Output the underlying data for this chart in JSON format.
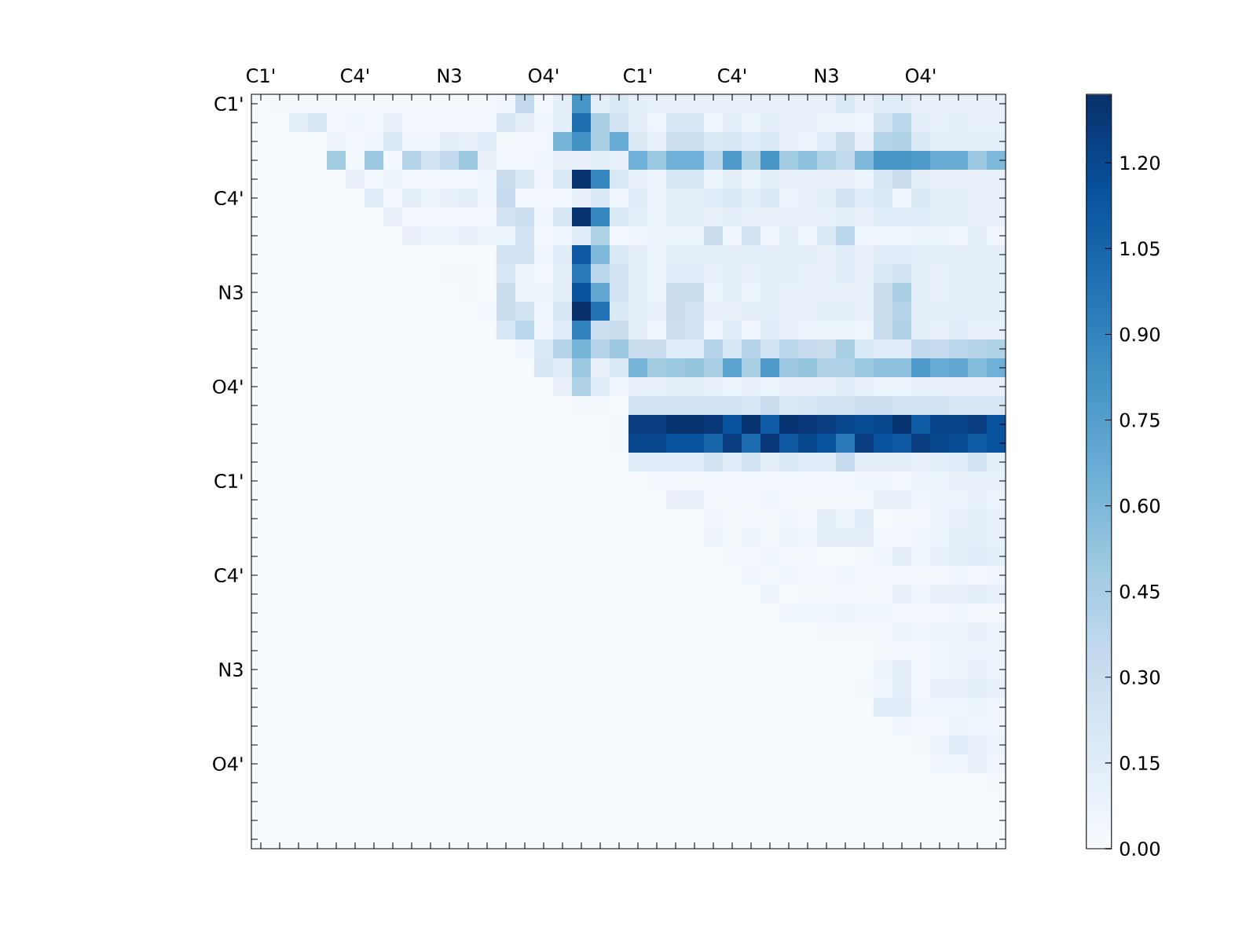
{
  "chart_data": {
    "type": "heatmap",
    "categories": [
      "C1'",
      null,
      null,
      null,
      null,
      "C4'",
      null,
      null,
      null,
      null,
      "N3",
      null,
      null,
      null,
      null,
      "O4'",
      null,
      null,
      null,
      null,
      "C1'",
      null,
      null,
      null,
      null,
      "C4'",
      null,
      null,
      null,
      null,
      "N3",
      null,
      null,
      null,
      null,
      "O4'",
      null,
      null,
      null,
      null
    ],
    "y_categories": [
      "C1'",
      null,
      null,
      null,
      null,
      "C4'",
      null,
      null,
      null,
      null,
      "N3",
      null,
      null,
      null,
      null,
      "O4'",
      null,
      null,
      null,
      null,
      "C1'",
      null,
      null,
      null,
      null,
      "C4'",
      null,
      null,
      null,
      null,
      "N3",
      null,
      null,
      null,
      null,
      "O4'",
      null,
      null,
      null,
      null
    ],
    "cells": [
      [
        0.01,
        0.02,
        0.02,
        0.02,
        0.02,
        0.02,
        0.02,
        0.02,
        0.02,
        0.02,
        0.02,
        0.02,
        0.02,
        0.05,
        0.35,
        0.03,
        0.12,
        0.8,
        0.12,
        0.2,
        0.12,
        0.1,
        0.1,
        0.1,
        0.1,
        0.1,
        0.1,
        0.1,
        0.1,
        0.1,
        0.1,
        0.2,
        0.1,
        0.15,
        0.15,
        0.1,
        0.1,
        0.1,
        0.1,
        0.1
      ],
      [
        0,
        0,
        0.12,
        0.22,
        0.03,
        0.06,
        0.03,
        0.1,
        0.04,
        0.04,
        0.04,
        0.04,
        0.04,
        0.22,
        0.12,
        0.06,
        0.12,
        1.0,
        0.45,
        0.25,
        0.12,
        0.06,
        0.22,
        0.22,
        0.06,
        0.12,
        0.08,
        0.12,
        0.1,
        0.1,
        0.08,
        0.08,
        0.06,
        0.25,
        0.38,
        0.12,
        0.1,
        0.12,
        0.1,
        0.1
      ],
      [
        0,
        0,
        0,
        0,
        0.08,
        0.04,
        0.05,
        0.2,
        0.06,
        0.05,
        0.12,
        0.1,
        0.15,
        0.02,
        0.04,
        0.04,
        0.62,
        0.82,
        0.45,
        0.68,
        0.18,
        0.1,
        0.28,
        0.28,
        0.2,
        0.22,
        0.15,
        0.18,
        0.1,
        0.08,
        0.15,
        0.3,
        0.1,
        0.4,
        0.42,
        0.18,
        0.12,
        0.12,
        0.12,
        0.12
      ],
      [
        0,
        0,
        0,
        0,
        0.48,
        0.02,
        0.5,
        0.03,
        0.4,
        0.25,
        0.35,
        0.5,
        0.1,
        0.03,
        0.03,
        0.05,
        0.1,
        0.1,
        0.12,
        0.1,
        0.65,
        0.5,
        0.65,
        0.65,
        0.38,
        0.78,
        0.42,
        0.8,
        0.48,
        0.55,
        0.42,
        0.35,
        0.6,
        0.8,
        0.8,
        0.78,
        0.68,
        0.68,
        0.5,
        0.6
      ],
      [
        0,
        0,
        0,
        0,
        0,
        0.1,
        0.03,
        0.08,
        0.03,
        0.03,
        0.03,
        0.03,
        0.05,
        0.3,
        0.18,
        0.05,
        0.18,
        1.3,
        0.88,
        0.2,
        0.1,
        0.08,
        0.22,
        0.22,
        0.08,
        0.12,
        0.08,
        0.12,
        0.1,
        0.1,
        0.1,
        0.1,
        0.08,
        0.22,
        0.3,
        0.12,
        0.1,
        0.1,
        0.1,
        0.1
      ],
      [
        0,
        0,
        0,
        0,
        0,
        0,
        0.15,
        0.03,
        0.12,
        0.08,
        0.1,
        0.12,
        0.05,
        0.32,
        0.04,
        0.03,
        0.04,
        0.1,
        0.2,
        0.05,
        0.15,
        0.08,
        0.12,
        0.12,
        0.15,
        0.18,
        0.12,
        0.18,
        0.08,
        0.1,
        0.12,
        0.25,
        0.15,
        0.18,
        0.06,
        0.18,
        0.12,
        0.12,
        0.1,
        0.1
      ],
      [
        0,
        0,
        0,
        0,
        0,
        0,
        0,
        0.1,
        0.03,
        0.03,
        0.03,
        0.03,
        0.03,
        0.25,
        0.28,
        0.05,
        0.22,
        1.3,
        0.88,
        0.18,
        0.12,
        0.07,
        0.12,
        0.12,
        0.1,
        0.12,
        0.1,
        0.1,
        0.1,
        0.1,
        0.1,
        0.12,
        0.1,
        0.15,
        0.15,
        0.15,
        0.12,
        0.12,
        0.1,
        0.1
      ],
      [
        0,
        0,
        0,
        0,
        0,
        0,
        0,
        0,
        0.1,
        0.08,
        0.08,
        0.1,
        0.08,
        0.08,
        0.25,
        0.03,
        0.05,
        0.15,
        0.42,
        0.03,
        0.06,
        0.08,
        0.07,
        0.07,
        0.3,
        0.05,
        0.25,
        0.05,
        0.12,
        0.05,
        0.18,
        0.38,
        0.05,
        0.06,
        0.05,
        0.07,
        0.07,
        0.05,
        0.12,
        0.05
      ],
      [
        0,
        0,
        0,
        0,
        0,
        0,
        0,
        0,
        0,
        0,
        0,
        0,
        0,
        0.25,
        0.25,
        0.06,
        0.15,
        1.12,
        0.6,
        0.2,
        0.12,
        0.08,
        0.12,
        0.12,
        0.12,
        0.12,
        0.12,
        0.12,
        0.12,
        0.12,
        0.1,
        0.15,
        0.1,
        0.15,
        0.15,
        0.12,
        0.12,
        0.12,
        0.12,
        0.12
      ],
      [
        0,
        0,
        0,
        0,
        0,
        0,
        0,
        0,
        0,
        0,
        0.02,
        0.02,
        0,
        0.22,
        0.08,
        0.04,
        0.12,
        0.95,
        0.38,
        0.25,
        0.12,
        0.08,
        0.15,
        0.15,
        0.1,
        0.12,
        0.1,
        0.12,
        0.12,
        0.1,
        0.1,
        0.15,
        0.1,
        0.2,
        0.25,
        0.12,
        0.1,
        0.12,
        0.12,
        0.12
      ],
      [
        0,
        0,
        0,
        0,
        0,
        0,
        0,
        0,
        0,
        0,
        0,
        0.02,
        0,
        0.3,
        0.08,
        0.08,
        0.12,
        1.15,
        0.7,
        0.25,
        0.12,
        0.08,
        0.3,
        0.3,
        0.08,
        0.12,
        0.08,
        0.12,
        0.1,
        0.1,
        0.1,
        0.1,
        0.1,
        0.3,
        0.45,
        0.12,
        0.1,
        0.12,
        0.12,
        0.12
      ],
      [
        0,
        0,
        0,
        0,
        0,
        0,
        0,
        0,
        0,
        0,
        0,
        0,
        0.03,
        0.3,
        0.25,
        0.05,
        0.22,
        1.32,
        0.98,
        0.18,
        0.12,
        0.1,
        0.3,
        0.25,
        0.1,
        0.1,
        0.12,
        0.12,
        0.1,
        0.1,
        0.12,
        0.12,
        0.1,
        0.3,
        0.4,
        0.12,
        0.12,
        0.12,
        0.12,
        0.12
      ],
      [
        0,
        0,
        0,
        0,
        0,
        0,
        0,
        0,
        0,
        0,
        0,
        0,
        0,
        0.22,
        0.38,
        0.05,
        0.15,
        0.9,
        0.28,
        0.3,
        0.12,
        0.06,
        0.28,
        0.25,
        0.06,
        0.15,
        0.06,
        0.15,
        0.1,
        0.08,
        0.08,
        0.08,
        0.06,
        0.3,
        0.42,
        0.12,
        0.1,
        0.15,
        0.1,
        0.1
      ],
      [
        0,
        0,
        0,
        0,
        0,
        0,
        0,
        0,
        0,
        0,
        0,
        0,
        0,
        0,
        0.06,
        0.2,
        0.4,
        0.62,
        0.4,
        0.5,
        0.3,
        0.3,
        0.15,
        0.15,
        0.4,
        0.22,
        0.4,
        0.25,
        0.38,
        0.32,
        0.3,
        0.45,
        0.2,
        0.15,
        0.15,
        0.35,
        0.32,
        0.38,
        0.4,
        0.42
      ],
      [
        0,
        0,
        0,
        0,
        0,
        0,
        0,
        0,
        0,
        0,
        0,
        0,
        0,
        0,
        0,
        0.22,
        0.15,
        0.5,
        0.1,
        0.2,
        0.62,
        0.48,
        0.5,
        0.52,
        0.45,
        0.72,
        0.45,
        0.78,
        0.5,
        0.52,
        0.42,
        0.42,
        0.5,
        0.55,
        0.55,
        0.78,
        0.68,
        0.7,
        0.58,
        0.65
      ],
      [
        0,
        0,
        0,
        0,
        0,
        0,
        0,
        0,
        0,
        0,
        0,
        0,
        0,
        0,
        0,
        0,
        0.1,
        0.42,
        0.15,
        0.06,
        0.1,
        0.1,
        0.12,
        0.12,
        0.1,
        0.08,
        0.1,
        0.08,
        0.1,
        0.1,
        0.1,
        0.15,
        0.1,
        0.08,
        0.08,
        0.1,
        0.1,
        0.1,
        0.1,
        0.1
      ],
      [
        0,
        0,
        0,
        0,
        0,
        0,
        0,
        0,
        0,
        0,
        0,
        0,
        0,
        0,
        0,
        0,
        0,
        0.02,
        0.02,
        0.01,
        0.25,
        0.25,
        0.25,
        0.25,
        0.25,
        0.25,
        0.22,
        0.3,
        0.2,
        0.22,
        0.25,
        0.25,
        0.28,
        0.28,
        0.25,
        0.25,
        0.25,
        0.22,
        0.22,
        0.22
      ],
      [
        0,
        0,
        0,
        0,
        0,
        0,
        0,
        0,
        0,
        0,
        0,
        0,
        0,
        0,
        0,
        0,
        0,
        0,
        0.01,
        0.02,
        1.25,
        1.25,
        1.3,
        1.3,
        1.28,
        1.15,
        1.3,
        1.1,
        1.3,
        1.28,
        1.25,
        1.2,
        1.18,
        1.2,
        1.3,
        1.1,
        1.22,
        1.22,
        1.25,
        1.15
      ],
      [
        0,
        0,
        0,
        0,
        0,
        0,
        0,
        0,
        0,
        0,
        0,
        0,
        0,
        0,
        0,
        0,
        0,
        0,
        0,
        0.02,
        1.2,
        1.2,
        1.15,
        1.15,
        1.05,
        1.25,
        1.02,
        1.28,
        1.12,
        1.2,
        1.15,
        0.95,
        1.25,
        1.15,
        1.12,
        1.25,
        1.2,
        1.18,
        1.1,
        1.15
      ],
      [
        0,
        0,
        0,
        0,
        0,
        0,
        0,
        0,
        0,
        0,
        0,
        0,
        0,
        0,
        0,
        0,
        0,
        0,
        0,
        0.01,
        0.15,
        0.15,
        0.15,
        0.15,
        0.25,
        0.15,
        0.25,
        0.12,
        0.2,
        0.15,
        0.15,
        0.32,
        0.12,
        0.12,
        0.12,
        0.1,
        0.12,
        0.15,
        0.25,
        0.12
      ],
      [
        0,
        0,
        0,
        0,
        0,
        0,
        0,
        0,
        0,
        0,
        0,
        0,
        0,
        0,
        0,
        0,
        0,
        0,
        0,
        0,
        0.01,
        0.03,
        0.02,
        0.02,
        0.03,
        0.03,
        0.04,
        0.04,
        0.03,
        0.03,
        0.04,
        0.04,
        0.05,
        0.05,
        0.03,
        0.08,
        0.08,
        0.1,
        0.1,
        0.1
      ],
      [
        0,
        0,
        0,
        0,
        0,
        0,
        0,
        0,
        0,
        0,
        0,
        0,
        0,
        0,
        0,
        0,
        0,
        0,
        0,
        0,
        0,
        0,
        0.1,
        0.1,
        0.02,
        0.03,
        0.02,
        0.05,
        0.02,
        0.02,
        0.02,
        0.02,
        0.02,
        0.1,
        0.1,
        0.06,
        0.08,
        0.08,
        0.1,
        0.08
      ],
      [
        0,
        0,
        0,
        0,
        0,
        0,
        0,
        0,
        0,
        0,
        0,
        0,
        0,
        0,
        0,
        0,
        0,
        0,
        0,
        0,
        0,
        0,
        0,
        0,
        0.05,
        0.02,
        0.04,
        0.02,
        0.06,
        0.03,
        0.12,
        0.08,
        0.15,
        0.01,
        0.02,
        0.03,
        0.08,
        0.1,
        0.12,
        0.1
      ],
      [
        0,
        0,
        0,
        0,
        0,
        0,
        0,
        0,
        0,
        0,
        0,
        0,
        0,
        0,
        0,
        0,
        0,
        0,
        0,
        0,
        0,
        0,
        0,
        0,
        0.08,
        0.02,
        0.08,
        0.02,
        0.08,
        0.05,
        0.12,
        0.12,
        0.12,
        0.04,
        0.03,
        0.05,
        0.08,
        0.12,
        0.12,
        0.1
      ],
      [
        0,
        0,
        0,
        0,
        0,
        0,
        0,
        0,
        0,
        0,
        0,
        0,
        0,
        0,
        0,
        0,
        0,
        0,
        0,
        0,
        0,
        0,
        0,
        0,
        0,
        0.03,
        0.02,
        0.06,
        0.02,
        0.03,
        0.01,
        0.01,
        0.02,
        0.06,
        0.12,
        0.05,
        0.1,
        0.12,
        0.15,
        0.12
      ],
      [
        0,
        0,
        0,
        0,
        0,
        0,
        0,
        0,
        0,
        0,
        0,
        0,
        0,
        0,
        0,
        0,
        0,
        0,
        0,
        0,
        0,
        0,
        0,
        0,
        0,
        0,
        0.05,
        0.02,
        0.05,
        0.03,
        0.04,
        0.05,
        0.04,
        0.04,
        0.03,
        0.02,
        0.02,
        0.06,
        0.04,
        0.06
      ],
      [
        0,
        0,
        0,
        0,
        0,
        0,
        0,
        0,
        0,
        0,
        0,
        0,
        0,
        0,
        0,
        0,
        0,
        0,
        0,
        0,
        0,
        0,
        0,
        0,
        0,
        0,
        0,
        0.08,
        0.01,
        0.02,
        0.02,
        0.03,
        0.02,
        0.03,
        0.1,
        0.05,
        0.1,
        0.1,
        0.12,
        0.1
      ],
      [
        0,
        0,
        0,
        0,
        0,
        0,
        0,
        0,
        0,
        0,
        0,
        0,
        0,
        0,
        0,
        0,
        0,
        0,
        0,
        0,
        0,
        0,
        0,
        0,
        0,
        0,
        0,
        0,
        0.06,
        0.05,
        0.06,
        0.08,
        0.05,
        0.05,
        0.04,
        0.03,
        0.02,
        0.05,
        0.02,
        0.03
      ],
      [
        0,
        0,
        0,
        0,
        0,
        0,
        0,
        0,
        0,
        0,
        0,
        0,
        0,
        0,
        0,
        0,
        0,
        0,
        0,
        0,
        0,
        0,
        0,
        0,
        0,
        0,
        0,
        0,
        0,
        0,
        0.02,
        0.02,
        0.02,
        0.04,
        0.08,
        0.06,
        0.08,
        0.08,
        0.1,
        0.08
      ],
      [
        0,
        0,
        0,
        0,
        0,
        0,
        0,
        0,
        0,
        0,
        0,
        0,
        0,
        0,
        0,
        0,
        0,
        0,
        0,
        0,
        0,
        0,
        0,
        0,
        0,
        0,
        0,
        0,
        0,
        0,
        0.01,
        0.01,
        0.01,
        0.02,
        0.04,
        0.04,
        0.06,
        0.08,
        0.08,
        0.08
      ],
      [
        0,
        0,
        0,
        0,
        0,
        0,
        0,
        0,
        0,
        0,
        0,
        0,
        0,
        0,
        0,
        0,
        0,
        0,
        0,
        0,
        0,
        0,
        0,
        0,
        0,
        0,
        0,
        0,
        0,
        0,
        0,
        0,
        0.01,
        0.08,
        0.12,
        0.04,
        0.06,
        0.08,
        0.1,
        0.08
      ],
      [
        0,
        0,
        0,
        0,
        0,
        0,
        0,
        0,
        0,
        0,
        0,
        0,
        0,
        0,
        0,
        0,
        0,
        0,
        0,
        0,
        0,
        0,
        0,
        0,
        0,
        0,
        0,
        0,
        0,
        0,
        0,
        0,
        0.02,
        0.06,
        0.12,
        0.03,
        0.1,
        0.1,
        0.12,
        0.1
      ],
      [
        0,
        0,
        0,
        0,
        0,
        0,
        0,
        0,
        0,
        0,
        0,
        0,
        0,
        0,
        0,
        0,
        0,
        0,
        0,
        0,
        0,
        0,
        0,
        0,
        0,
        0,
        0,
        0,
        0,
        0,
        0,
        0,
        0,
        0.15,
        0.15,
        0.06,
        0.06,
        0.05,
        0.08,
        0.05
      ],
      [
        0,
        0,
        0,
        0,
        0,
        0,
        0,
        0,
        0,
        0,
        0,
        0,
        0,
        0,
        0,
        0,
        0,
        0,
        0,
        0,
        0,
        0,
        0,
        0,
        0,
        0,
        0,
        0,
        0,
        0,
        0,
        0,
        0,
        0,
        0.06,
        0.04,
        0.04,
        0.08,
        0.06,
        0.05
      ],
      [
        0,
        0,
        0,
        0,
        0,
        0,
        0,
        0,
        0,
        0,
        0,
        0,
        0,
        0,
        0,
        0,
        0,
        0,
        0,
        0,
        0,
        0,
        0,
        0,
        0,
        0,
        0,
        0,
        0,
        0,
        0,
        0,
        0,
        0,
        0,
        0.02,
        0.08,
        0.15,
        0.1,
        0.08
      ],
      [
        0,
        0,
        0,
        0,
        0,
        0,
        0,
        0,
        0,
        0,
        0,
        0,
        0,
        0,
        0,
        0,
        0,
        0,
        0,
        0,
        0,
        0,
        0,
        0,
        0,
        0,
        0,
        0,
        0,
        0,
        0,
        0,
        0,
        0,
        0,
        0,
        0.06,
        0.06,
        0.1,
        0.06
      ],
      [
        0,
        0,
        0,
        0,
        0,
        0,
        0,
        0,
        0,
        0,
        0,
        0,
        0,
        0,
        0,
        0,
        0,
        0,
        0,
        0,
        0,
        0,
        0,
        0,
        0,
        0,
        0,
        0,
        0,
        0,
        0,
        0,
        0,
        0,
        0,
        0,
        0,
        0.01,
        0.01,
        0.02
      ],
      [
        0,
        0,
        0,
        0,
        0,
        0,
        0,
        0,
        0,
        0,
        0,
        0,
        0,
        0,
        0,
        0,
        0,
        0,
        0,
        0,
        0,
        0,
        0,
        0,
        0,
        0,
        0,
        0,
        0,
        0,
        0,
        0,
        0,
        0,
        0,
        0,
        0,
        0,
        0.01,
        0.01
      ],
      [
        0,
        0,
        0,
        0,
        0,
        0,
        0,
        0,
        0,
        0,
        0,
        0,
        0,
        0,
        0,
        0,
        0,
        0,
        0,
        0,
        0,
        0,
        0,
        0,
        0,
        0,
        0,
        0,
        0,
        0,
        0,
        0,
        0,
        0,
        0,
        0,
        0,
        0,
        0,
        0
      ],
      [
        0,
        0,
        0,
        0,
        0,
        0,
        0,
        0,
        0,
        0,
        0,
        0,
        0,
        0,
        0,
        0,
        0,
        0,
        0,
        0,
        0,
        0,
        0,
        0,
        0,
        0,
        0,
        0,
        0,
        0,
        0,
        0,
        0,
        0,
        0,
        0,
        0,
        0,
        0,
        0
      ]
    ],
    "clim": [
      0,
      1.32
    ],
    "cticks": [
      {
        "value": 0,
        "label": "0.00"
      },
      {
        "value": 0.15,
        "label": "0.15"
      },
      {
        "value": 0.3,
        "label": "0.30"
      },
      {
        "value": 0.45,
        "label": "0.45"
      },
      {
        "value": 0.6,
        "label": "0.60"
      },
      {
        "value": 0.75,
        "label": "0.75"
      },
      {
        "value": 0.9,
        "label": "0.90"
      },
      {
        "value": 1.05,
        "label": "1.05"
      },
      {
        "value": 1.2,
        "label": "1.20"
      }
    ]
  }
}
